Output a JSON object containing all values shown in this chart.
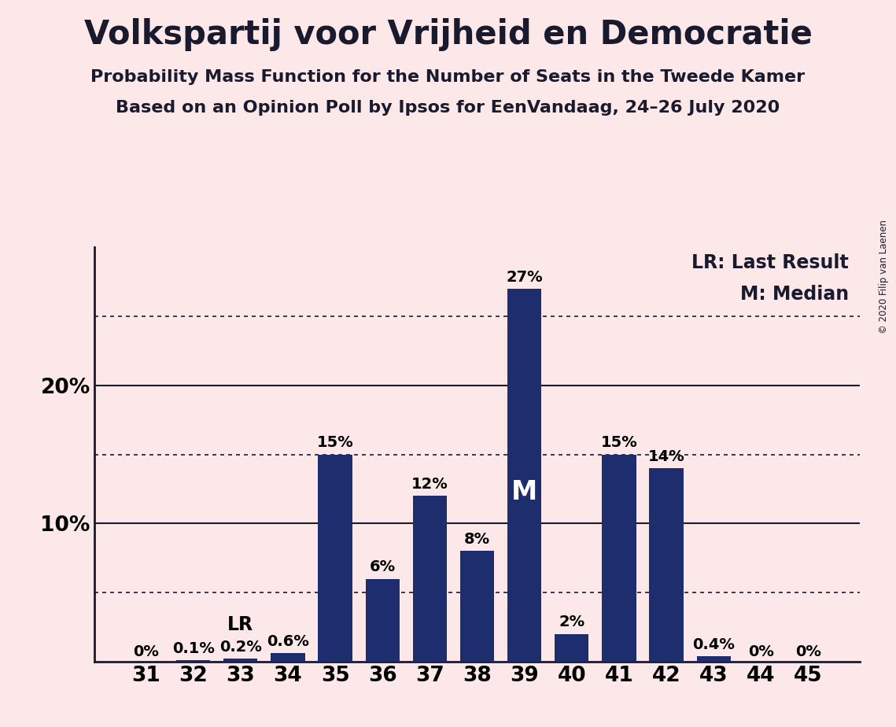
{
  "title": "Volkspartij voor Vrijheid en Democratie",
  "subtitle1": "Probability Mass Function for the Number of Seats in the Tweede Kamer",
  "subtitle2": "Based on an Opinion Poll by Ipsos for EenVandaag, 24–26 July 2020",
  "copyright": "© 2020 Filip van Laenen",
  "categories": [
    31,
    32,
    33,
    34,
    35,
    36,
    37,
    38,
    39,
    40,
    41,
    42,
    43,
    44,
    45
  ],
  "values": [
    0.0,
    0.1,
    0.2,
    0.6,
    15.0,
    6.0,
    12.0,
    8.0,
    27.0,
    2.0,
    15.0,
    14.0,
    0.4,
    0.0,
    0.0
  ],
  "labels": [
    "0%",
    "0.1%",
    "0.2%",
    "0.6%",
    "15%",
    "6%",
    "12%",
    "8%",
    "27%",
    "2%",
    "15%",
    "14%",
    "0.4%",
    "0%",
    "0%"
  ],
  "bar_color": "#1e2d6e",
  "background_color": "#fce8e8",
  "lr_seat": 33,
  "median_seat": 39,
  "ylim": [
    0,
    30
  ],
  "solid_yticks": [
    10,
    20
  ],
  "dotted_yticks": [
    5,
    15,
    25
  ],
  "title_fontsize": 30,
  "subtitle_fontsize": 16,
  "legend_fontsize": 17,
  "bar_label_fontsize": 14,
  "axis_tick_fontsize": 19
}
